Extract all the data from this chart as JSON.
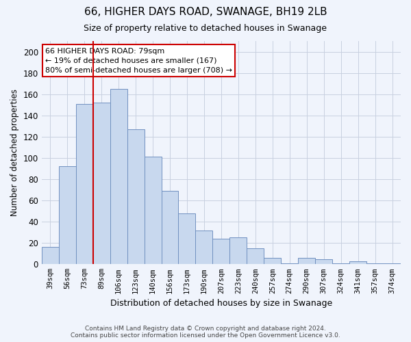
{
  "title": "66, HIGHER DAYS ROAD, SWANAGE, BH19 2LB",
  "subtitle": "Size of property relative to detached houses in Swanage",
  "xlabel": "Distribution of detached houses by size in Swanage",
  "ylabel": "Number of detached properties",
  "categories": [
    "39sqm",
    "56sqm",
    "73sqm",
    "89sqm",
    "106sqm",
    "123sqm",
    "140sqm",
    "156sqm",
    "173sqm",
    "190sqm",
    "207sqm",
    "223sqm",
    "240sqm",
    "257sqm",
    "274sqm",
    "290sqm",
    "307sqm",
    "324sqm",
    "341sqm",
    "357sqm",
    "374sqm"
  ],
  "values": [
    16,
    92,
    151,
    152,
    165,
    127,
    101,
    69,
    48,
    32,
    24,
    25,
    15,
    6,
    1,
    6,
    5,
    1,
    3,
    1,
    1
  ],
  "bar_color": "#c8d8ee",
  "bar_edge_color": "#7090c0",
  "vline_x_idx": 2,
  "vline_color": "#cc0000",
  "annotation_text": "66 HIGHER DAYS ROAD: 79sqm\n← 19% of detached houses are smaller (167)\n80% of semi-detached houses are larger (708) →",
  "annotation_box_color": "white",
  "annotation_box_edge": "#cc0000",
  "ylim": [
    0,
    210
  ],
  "yticks": [
    0,
    20,
    40,
    60,
    80,
    100,
    120,
    140,
    160,
    180,
    200
  ],
  "grid_color": "#c8d0e0",
  "background_color": "#f0f4fc",
  "footer_line1": "Contains HM Land Registry data © Crown copyright and database right 2024.",
  "footer_line2": "Contains public sector information licensed under the Open Government Licence v3.0."
}
